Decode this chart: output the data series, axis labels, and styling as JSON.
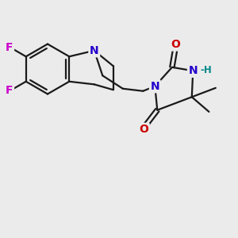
{
  "background_color": "#ebebeb",
  "bond_color": "#1a1a1a",
  "nitrogen_color": "#2200cc",
  "oxygen_color": "#cc0000",
  "fluorine_color": "#cc00cc",
  "hydrogen_color": "#008888",
  "line_width": 1.6,
  "font_size_atoms": 10,
  "font_size_small": 8.5,
  "figsize": [
    3.0,
    3.0
  ],
  "dpi": 100,
  "xlim": [
    0,
    10
  ],
  "ylim": [
    0,
    10
  ]
}
